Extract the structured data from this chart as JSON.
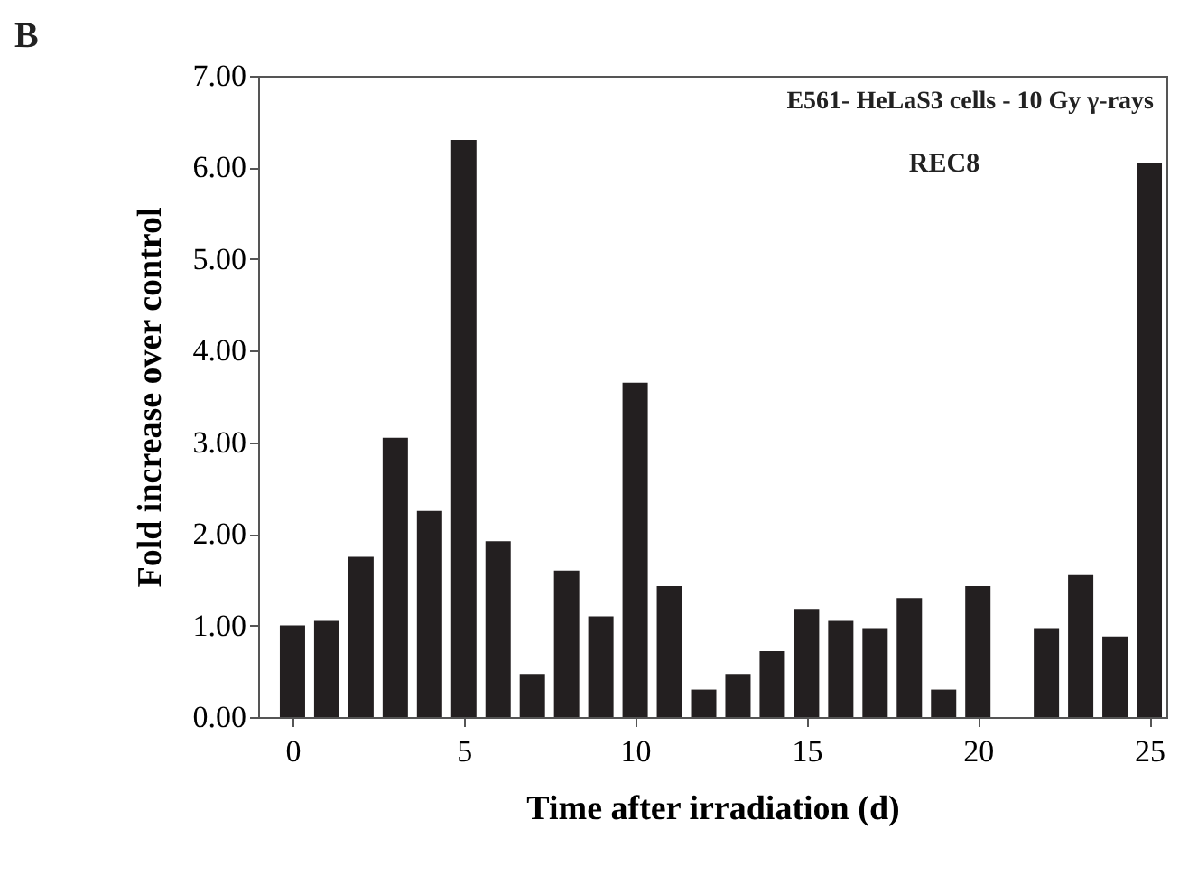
{
  "chart_data": {
    "type": "bar",
    "xlabel": "Time after irradiation (d)",
    "ylabel": "Fold increase over control",
    "annotations": [
      "B",
      "E561- HeLaS3 cells - 10 Gy γ-rays",
      "REC8"
    ],
    "x": [
      0,
      1,
      2,
      3,
      4,
      5,
      6,
      7,
      8,
      9,
      10,
      11,
      12,
      13,
      14,
      15,
      16,
      17,
      18,
      19,
      20,
      21,
      22,
      23,
      24,
      25
    ],
    "values": [
      1.0,
      1.05,
      1.75,
      3.05,
      2.25,
      6.3,
      1.92,
      0.47,
      1.6,
      1.1,
      3.65,
      1.43,
      0.3,
      0.47,
      0.72,
      1.18,
      1.05,
      0.97,
      1.3,
      0.3,
      1.43,
      null,
      0.97,
      1.55,
      0.88,
      6.05
    ],
    "color": "#231f20",
    "xlim": [
      -1,
      25.5
    ],
    "xticks": [
      0,
      5,
      10,
      15,
      20,
      25
    ],
    "ylim": [
      0,
      7
    ],
    "yticks": [
      {
        "value": 0,
        "label": "0.00"
      },
      {
        "value": 1,
        "label": "1.00"
      },
      {
        "value": 2,
        "label": "2.00"
      },
      {
        "value": 3,
        "label": "3.00"
      },
      {
        "value": 4,
        "label": "4.00"
      },
      {
        "value": 5,
        "label": "5.00"
      },
      {
        "value": 6,
        "label": "6.00"
      },
      {
        "value": 7,
        "label": "7.00"
      }
    ],
    "grid": false
  }
}
